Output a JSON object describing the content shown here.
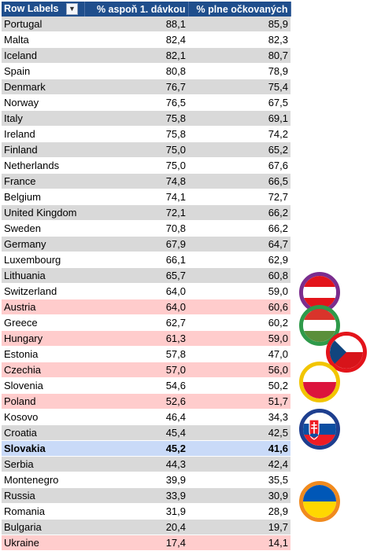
{
  "table": {
    "headers": {
      "country": "Row Labels",
      "first_dose": "% aspoň 1. dávkou",
      "full": "% plne očkovaných"
    },
    "rows": [
      {
        "country": "Portugal",
        "first_dose": "88,1",
        "full": "85,9",
        "style": "gray"
      },
      {
        "country": "Malta",
        "first_dose": "82,4",
        "full": "82,3",
        "style": "white"
      },
      {
        "country": "Iceland",
        "first_dose": "82,1",
        "full": "80,7",
        "style": "gray"
      },
      {
        "country": "Spain",
        "first_dose": "80,8",
        "full": "78,9",
        "style": "white"
      },
      {
        "country": "Denmark",
        "first_dose": "76,7",
        "full": "75,4",
        "style": "gray"
      },
      {
        "country": "Norway",
        "first_dose": "76,5",
        "full": "67,5",
        "style": "white"
      },
      {
        "country": "Italy",
        "first_dose": "75,8",
        "full": "69,1",
        "style": "gray"
      },
      {
        "country": "Ireland",
        "first_dose": "75,8",
        "full": "74,2",
        "style": "white"
      },
      {
        "country": "Finland",
        "first_dose": "75,0",
        "full": "65,2",
        "style": "gray"
      },
      {
        "country": "Netherlands",
        "first_dose": "75,0",
        "full": "67,6",
        "style": "white"
      },
      {
        "country": "France",
        "first_dose": "74,8",
        "full": "66,5",
        "style": "gray"
      },
      {
        "country": "Belgium",
        "first_dose": "74,1",
        "full": "72,7",
        "style": "white"
      },
      {
        "country": "United Kingdom",
        "first_dose": "72,1",
        "full": "66,2",
        "style": "gray"
      },
      {
        "country": "Sweden",
        "first_dose": "70,8",
        "full": "66,2",
        "style": "white"
      },
      {
        "country": "Germany",
        "first_dose": "67,9",
        "full": "64,7",
        "style": "gray"
      },
      {
        "country": "Luxembourg",
        "first_dose": "66,1",
        "full": "62,9",
        "style": "white"
      },
      {
        "country": "Lithuania",
        "first_dose": "65,7",
        "full": "60,8",
        "style": "gray"
      },
      {
        "country": "Switzerland",
        "first_dose": "64,0",
        "full": "59,0",
        "style": "white"
      },
      {
        "country": "Austria",
        "first_dose": "64,0",
        "full": "60,6",
        "style": "neighbor"
      },
      {
        "country": "Greece",
        "first_dose": "62,7",
        "full": "60,2",
        "style": "white"
      },
      {
        "country": "Hungary",
        "first_dose": "61,3",
        "full": "59,0",
        "style": "neighbor"
      },
      {
        "country": "Estonia",
        "first_dose": "57,8",
        "full": "47,0",
        "style": "white"
      },
      {
        "country": "Czechia",
        "first_dose": "57,0",
        "full": "56,0",
        "style": "neighbor"
      },
      {
        "country": "Slovenia",
        "first_dose": "54,6",
        "full": "50,2",
        "style": "white"
      },
      {
        "country": "Poland",
        "first_dose": "52,6",
        "full": "51,7",
        "style": "neighbor"
      },
      {
        "country": "Kosovo",
        "first_dose": "46,4",
        "full": "34,3",
        "style": "white"
      },
      {
        "country": "Croatia",
        "first_dose": "45,4",
        "full": "42,5",
        "style": "gray"
      },
      {
        "country": "Slovakia",
        "first_dose": "45,2",
        "full": "41,6",
        "style": "highlight"
      },
      {
        "country": "Serbia",
        "first_dose": "44,3",
        "full": "42,4",
        "style": "gray"
      },
      {
        "country": "Montenegro",
        "first_dose": "39,9",
        "full": "35,5",
        "style": "white"
      },
      {
        "country": "Russia",
        "first_dose": "33,9",
        "full": "30,9",
        "style": "gray"
      },
      {
        "country": "Romania",
        "first_dose": "31,9",
        "full": "28,9",
        "style": "white"
      },
      {
        "country": "Bulgaria",
        "first_dose": "20,4",
        "full": "19,7",
        "style": "gray"
      },
      {
        "country": "Ukraine",
        "first_dose": "17,4",
        "full": "14,1",
        "style": "neighbor"
      }
    ]
  },
  "row_colors": {
    "gray": "#d9d9d9",
    "white": "#ffffff",
    "neighbor": "#ffcccc",
    "highlight": "#c9daf8"
  },
  "header_color": "#1f4e8c",
  "filter_icon": "filter-sort-icon",
  "flags": [
    {
      "name": "austria-flag-icon",
      "country": "Austria",
      "ring_color": "#7b2d8e"
    },
    {
      "name": "hungary-flag-icon",
      "country": "Hungary",
      "ring_color": "#2f9a4a"
    },
    {
      "name": "czechia-flag-icon",
      "country": "Czechia",
      "ring_color": "#e3141b"
    },
    {
      "name": "poland-flag-icon",
      "country": "Poland",
      "ring_color": "#f2c500"
    },
    {
      "name": "slovakia-flag-icon",
      "country": "Slovakia",
      "ring_color": "#1e3f8f"
    },
    {
      "name": "ukraine-flag-icon",
      "country": "Ukraine",
      "ring_color": "#f08a1e"
    }
  ]
}
